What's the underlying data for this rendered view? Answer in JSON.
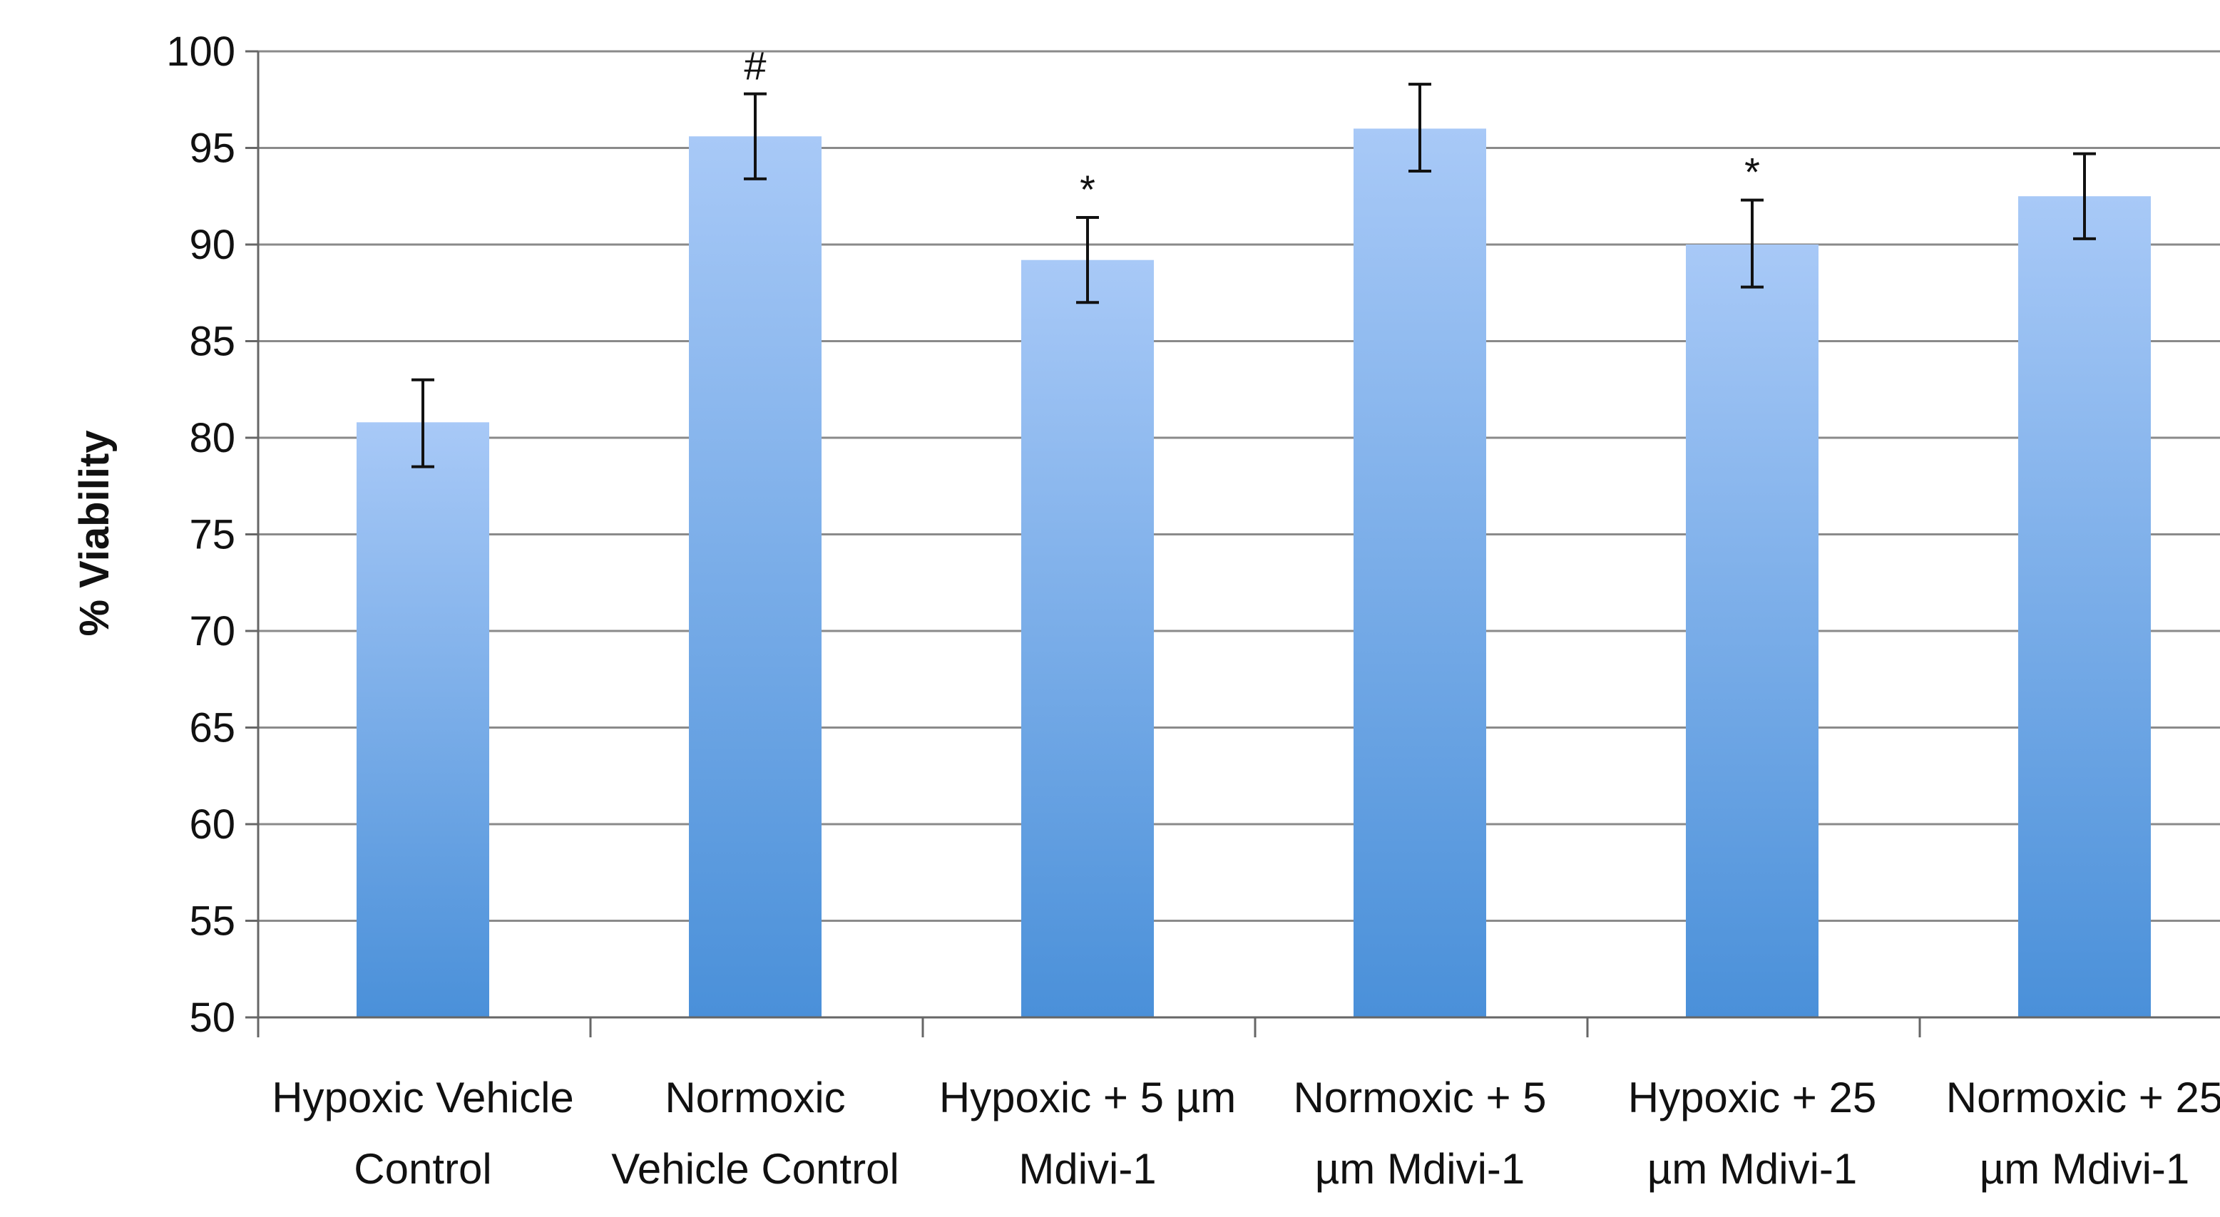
{
  "chart_data": {
    "type": "bar",
    "title": "",
    "xlabel": "",
    "ylabel": "% Viability",
    "ylim": [
      50,
      100
    ],
    "yticks": [
      50,
      55,
      60,
      65,
      70,
      75,
      80,
      85,
      90,
      95,
      100
    ],
    "grid": true,
    "legend": "none",
    "colors": {
      "bar_top": "#a8c9f7",
      "bar_bottom": "#4a90d9",
      "grid": "#8a8a8a",
      "axis": "#666666"
    },
    "categories": [
      [
        "Hypoxic Vehicle",
        "Control"
      ],
      [
        "Normoxic",
        "Vehicle Control"
      ],
      [
        "Hypoxic + 5 µm",
        "Mdivi-1"
      ],
      [
        "Normoxic + 5",
        "µm Mdivi-1"
      ],
      [
        "Hypoxic + 25",
        "µm Mdivi-1"
      ],
      [
        "Normoxic + 25",
        "µm Mdivi-1"
      ]
    ],
    "values": [
      80.8,
      95.6,
      89.2,
      96.0,
      90.0,
      92.5
    ],
    "error_low": [
      78.5,
      93.4,
      87.0,
      93.8,
      87.8,
      90.3
    ],
    "error_high": [
      83.0,
      97.8,
      91.4,
      98.3,
      92.3,
      94.7
    ],
    "annotations": [
      "",
      "#",
      "*",
      "",
      "*",
      ""
    ]
  }
}
